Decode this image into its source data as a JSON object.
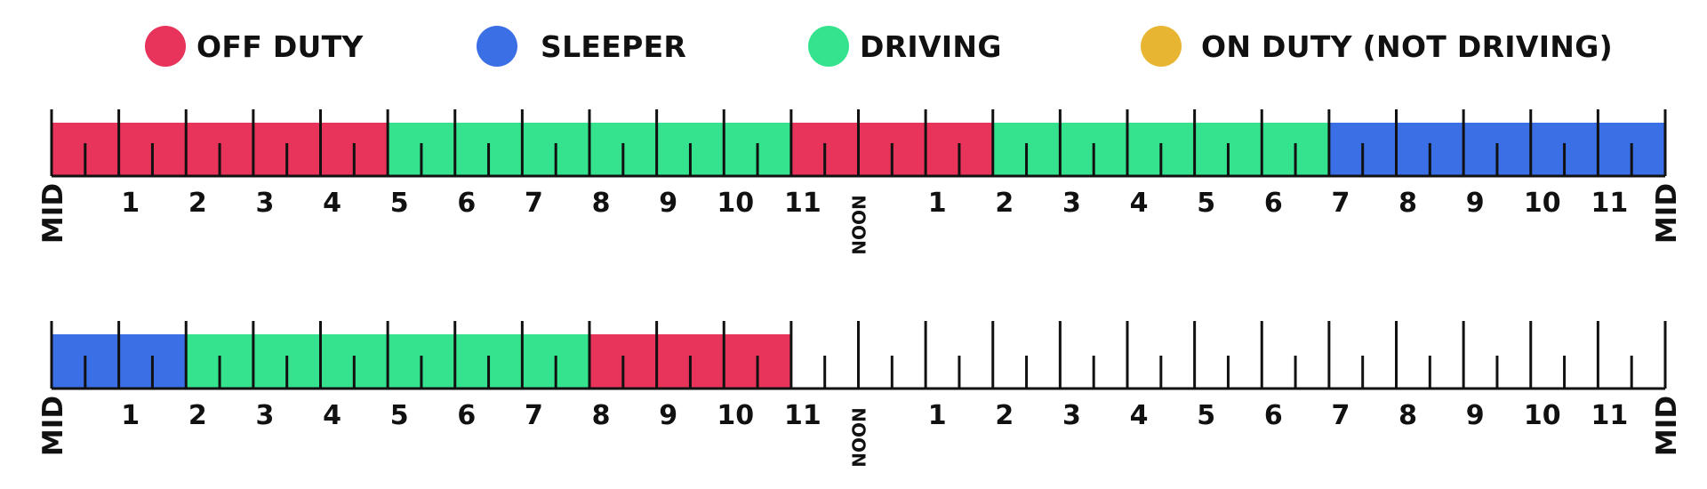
{
  "legend": [
    {
      "label": "OFF DUTY",
      "color": "#E8335A",
      "status": "off_duty"
    },
    {
      "label": "SLEEPER",
      "color": "#3A6FE6",
      "status": "sleeper"
    },
    {
      "label": "DRIVING",
      "color": "#35E38E",
      "status": "driving"
    },
    {
      "label": "ON DUTY (NOT DRIVING)",
      "color": "#E8B532",
      "status": "on_duty"
    }
  ],
  "hour_labels": [
    "MID",
    "1",
    "2",
    "3",
    "4",
    "5",
    "6",
    "7",
    "8",
    "9",
    "10",
    "11",
    "NOON",
    "1",
    "2",
    "3",
    "4",
    "5",
    "6",
    "7",
    "8",
    "9",
    "10",
    "11",
    "MID"
  ],
  "logs": [
    {
      "segments": [
        {
          "start": 0,
          "end": 5,
          "status": "off_duty"
        },
        {
          "start": 5,
          "end": 11,
          "status": "driving"
        },
        {
          "start": 11,
          "end": 14,
          "status": "off_duty"
        },
        {
          "start": 14,
          "end": 19,
          "status": "driving"
        },
        {
          "start": 19,
          "end": 24,
          "status": "sleeper"
        }
      ]
    },
    {
      "segments": [
        {
          "start": 0,
          "end": 2,
          "status": "sleeper"
        },
        {
          "start": 2,
          "end": 8,
          "status": "driving"
        },
        {
          "start": 8,
          "end": 11,
          "status": "off_duty"
        }
      ]
    }
  ]
}
